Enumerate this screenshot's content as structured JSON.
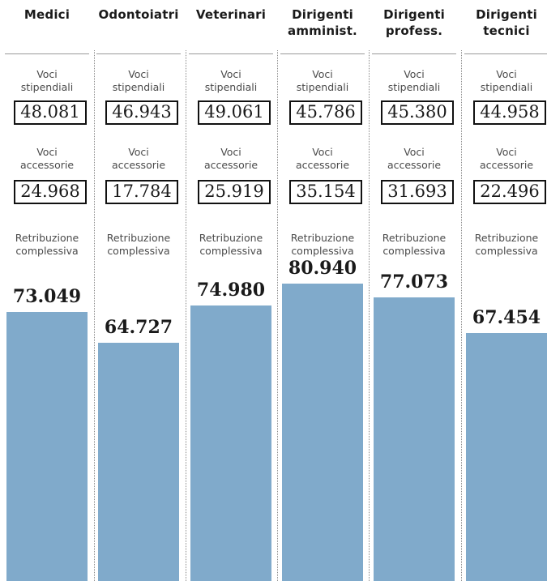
{
  "chart_data": {
    "type": "bar",
    "categories": [
      "Medici",
      "Odontoiatri",
      "Veterinari",
      "Dirigenti\namminist.",
      "Dirigenti\nprofess.",
      "Dirigenti\ntecnici"
    ],
    "labels": {
      "voci_stipendiali": "Voci\nstipendiali",
      "voci_accessorie": "Voci\naccessorie",
      "retribuzione": "Retribuzione\ncomplessiva"
    },
    "voci_stipendiali": [
      "48.081",
      "46.943",
      "49.061",
      "45.786",
      "45.380",
      "44.958"
    ],
    "voci_accessorie": [
      "24.968",
      "17.784",
      "25.919",
      "35.154",
      "31.693",
      "22.496"
    ],
    "retribuzione_labels": [
      "73.049",
      "64.727",
      "74.980",
      "80.940",
      "77.073",
      "67.454"
    ],
    "values": [
      73049,
      64727,
      74980,
      80940,
      77073,
      67454
    ],
    "ylim": [
      0,
      100000
    ],
    "bar_color": "#80aacb"
  }
}
